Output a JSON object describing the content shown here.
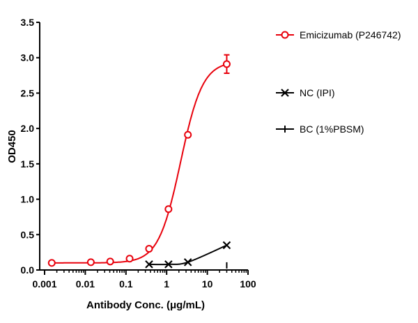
{
  "chart_data": {
    "type": "line",
    "title": "",
    "xlabel": "Antibody Conc. (μg/mL)",
    "ylabel": "OD450",
    "xscale": "log",
    "xlim": [
      0.001,
      100
    ],
    "ylim": [
      0,
      3.5
    ],
    "xticks": [
      "0.001",
      "0.01",
      "0.1",
      "1",
      "10",
      "100"
    ],
    "yticks": [
      "0.0",
      "0.5",
      "1.0",
      "1.5",
      "2.0",
      "2.5",
      "3.0",
      "3.5"
    ],
    "grid": false,
    "legend_position": "right",
    "series": [
      {
        "name": "Emicizumab (P246742)",
        "color": "#e8000b",
        "marker": "open-circle",
        "x": [
          0.0015,
          0.0137,
          0.041,
          0.123,
          0.37,
          1.11,
          3.33,
          30
        ],
        "y": [
          0.1,
          0.11,
          0.12,
          0.16,
          0.3,
          0.86,
          1.91,
          2.91
        ],
        "error": [
          0,
          0,
          0,
          0,
          0,
          0,
          0,
          0.13
        ]
      },
      {
        "name": "NC (IPI)",
        "color": "#000000",
        "marker": "x",
        "x": [
          0.37,
          1.11,
          3.33,
          30
        ],
        "y": [
          0.08,
          0.08,
          0.11,
          0.35
        ]
      },
      {
        "name": "BC (1%PBSM)",
        "color": "#000000",
        "marker": "plus",
        "x": [
          30
        ],
        "y": [
          0.06
        ]
      }
    ]
  }
}
